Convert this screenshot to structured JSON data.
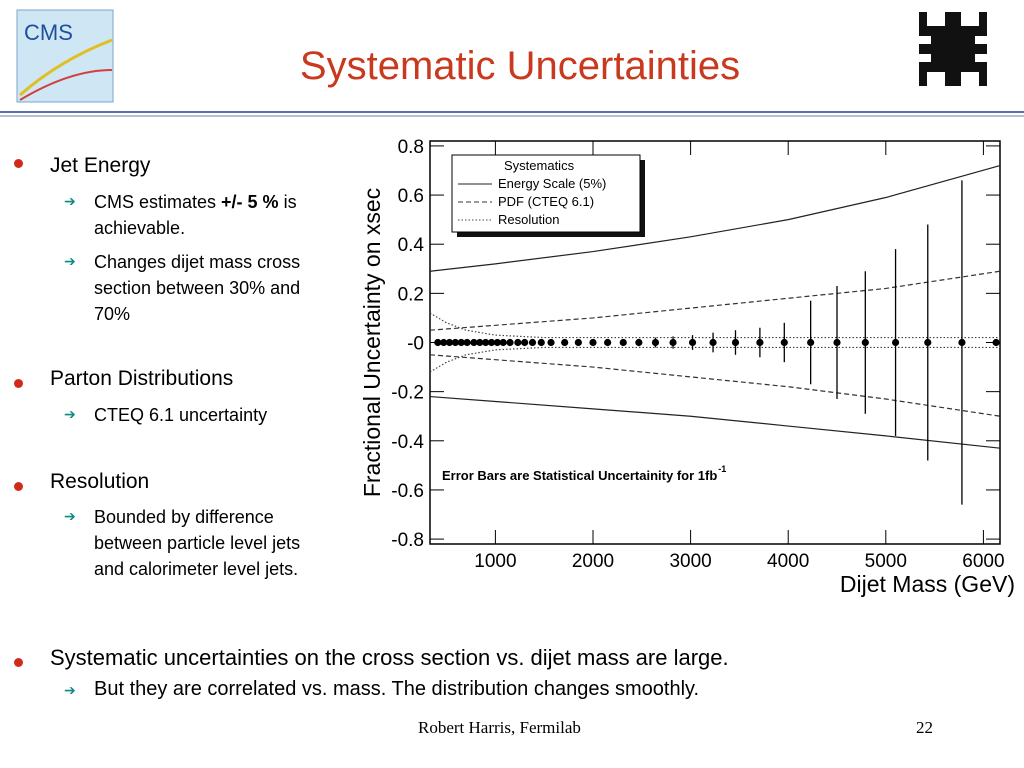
{
  "header": {
    "title": "Systematic Uncertainties",
    "logo_left": "CMS"
  },
  "bullets": [
    {
      "text": "Jet Energy",
      "items": [
        [
          "CMS estimates ",
          "+/- 5 %",
          " is achievable."
        ],
        [
          "Changes dijet mass cross section between 30% and 70%"
        ]
      ]
    },
    {
      "text": "Parton Distributions",
      "items": [
        [
          "CTEQ 6.1 uncertainty"
        ]
      ]
    },
    {
      "text": "Resolution",
      "items": [
        [
          "Bounded by difference between particle level jets and calorimeter level jets."
        ]
      ]
    }
  ],
  "summary": {
    "text": "Systematic uncertainties on the cross section vs. dijet mass are large.",
    "items": [
      "But they are correlated vs. mass.  The distribution changes smoothly."
    ]
  },
  "footer": {
    "author": "Robert Harris, Fermilab",
    "page": "22"
  },
  "chart_data": {
    "type": "line",
    "xlabel": "Dijet Mass (GeV)",
    "ylabel": "Fractional Uncertainty on xsec",
    "annotation": "Error Bars are Statistical Uncertainity for 1fb",
    "annotation_sup": "-1",
    "legend_title": "Systematics",
    "legend": "upper left",
    "xlim": [
      330,
      6170
    ],
    "ylim": [
      -0.82,
      0.82
    ],
    "xticks": [
      1000,
      2000,
      3000,
      4000,
      5000,
      6000
    ],
    "yticks": [
      -0.8,
      -0.6,
      -0.4,
      -0.2,
      {
        "value": 0,
        "label": "-0"
      },
      0.2,
      0.4,
      0.6,
      0.8
    ],
    "series": [
      {
        "name": "Energy Scale (5%)",
        "style": "solid",
        "color": "#222222",
        "x": [
          330,
          1000,
          2000,
          3000,
          4000,
          5000,
          6170
        ],
        "upper": [
          0.29,
          0.32,
          0.37,
          0.43,
          0.5,
          0.59,
          0.72
        ],
        "lower": [
          -0.22,
          -0.24,
          -0.27,
          -0.3,
          -0.34,
          -0.38,
          -0.43
        ]
      },
      {
        "name": "PDF (CTEQ 6.1)",
        "style": "dashed",
        "color": "#333333",
        "x": [
          330,
          1000,
          2000,
          3000,
          4000,
          5000,
          6170
        ],
        "upper": [
          0.05,
          0.07,
          0.1,
          0.14,
          0.18,
          0.22,
          0.29
        ],
        "lower": [
          -0.05,
          -0.07,
          -0.1,
          -0.14,
          -0.18,
          -0.23,
          -0.3
        ]
      },
      {
        "name": "Resolution",
        "style": "dotted",
        "color": "#444444",
        "x": [
          330,
          500,
          700,
          1000,
          1500,
          2000,
          6170
        ],
        "upper": [
          0.12,
          0.08,
          0.05,
          0.03,
          0.02,
          0.02,
          0.02
        ],
        "lower": [
          -0.12,
          -0.08,
          -0.05,
          -0.03,
          -0.02,
          -0.02,
          -0.02
        ]
      }
    ],
    "points": {
      "color": "#000000",
      "x": [
        410,
        470,
        530,
        590,
        650,
        710,
        780,
        840,
        900,
        960,
        1020,
        1080,
        1150,
        1230,
        1300,
        1380,
        1470,
        1570,
        1710,
        1850,
        2000,
        2150,
        2310,
        2470,
        2640,
        2820,
        3020,
        3230,
        3460,
        3710,
        3960,
        4230,
        4500,
        4790,
        5100,
        5430,
        5780,
        6130
      ],
      "values": [
        0,
        0,
        0,
        0,
        0,
        0,
        0,
        0,
        0,
        0,
        0,
        0,
        0,
        0,
        0,
        0,
        0,
        0,
        0,
        0,
        0,
        0,
        0,
        0,
        0,
        0,
        0,
        0,
        0,
        0,
        0,
        0,
        0,
        0,
        0,
        0,
        0,
        0
      ],
      "errors": [
        0,
        0,
        0,
        0,
        0,
        0,
        0,
        0,
        0,
        0,
        0,
        0,
        0,
        0,
        0,
        0,
        0,
        0,
        0,
        0,
        0.005,
        0.008,
        0.01,
        0.015,
        0.02,
        0.025,
        0.03,
        0.04,
        0.05,
        0.06,
        0.08,
        0.17,
        0.23,
        0.29,
        0.38,
        0.48,
        0.66,
        0
      ]
    }
  }
}
